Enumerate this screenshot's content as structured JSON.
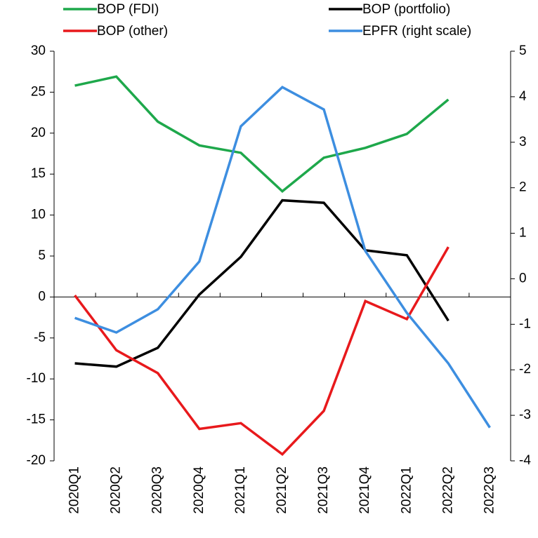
{
  "chart_data": {
    "type": "line",
    "categories": [
      "2020Q1",
      "2020Q2",
      "2020Q3",
      "2020Q4",
      "2021Q1",
      "2021Q2",
      "2021Q3",
      "2021Q4",
      "2022Q1",
      "2022Q2",
      "2022Q3"
    ],
    "series": [
      {
        "name": "BOP (FDI)",
        "color": "#1ea84b",
        "values": [
          25.8,
          26.9,
          21.4,
          18.5,
          17.6,
          12.9,
          17.0,
          18.2,
          19.9,
          24.1,
          null
        ]
      },
      {
        "name": "BOP (portfolio)",
        "color": "#000000",
        "values": [
          -8.1,
          -8.5,
          -6.2,
          0.3,
          4.9,
          11.8,
          11.5,
          5.7,
          5.1,
          -2.9,
          null
        ]
      },
      {
        "name": "BOP (other)",
        "color": "#e8191c",
        "values": [
          0.2,
          -6.5,
          -9.3,
          -16.1,
          -15.4,
          -19.2,
          -13.9,
          -0.5,
          -2.7,
          6.1,
          null
        ]
      },
      {
        "name": "EPFR (right scale)",
        "color": "#3d8ee0",
        "axis": "y2",
        "values": [
          -0.86,
          -1.18,
          -0.67,
          0.38,
          3.35,
          4.21,
          3.72,
          0.61,
          -0.75,
          -1.86,
          -3.27
        ]
      }
    ],
    "ylim": [
      -20,
      30
    ],
    "yticks": [
      -20,
      -15,
      -10,
      -5,
      0,
      5,
      10,
      15,
      20,
      25,
      30
    ],
    "y2lim": [
      -4,
      5
    ],
    "y2ticks": [
      -4,
      -3,
      -2,
      -1,
      0,
      1,
      2,
      3,
      4,
      5
    ]
  }
}
